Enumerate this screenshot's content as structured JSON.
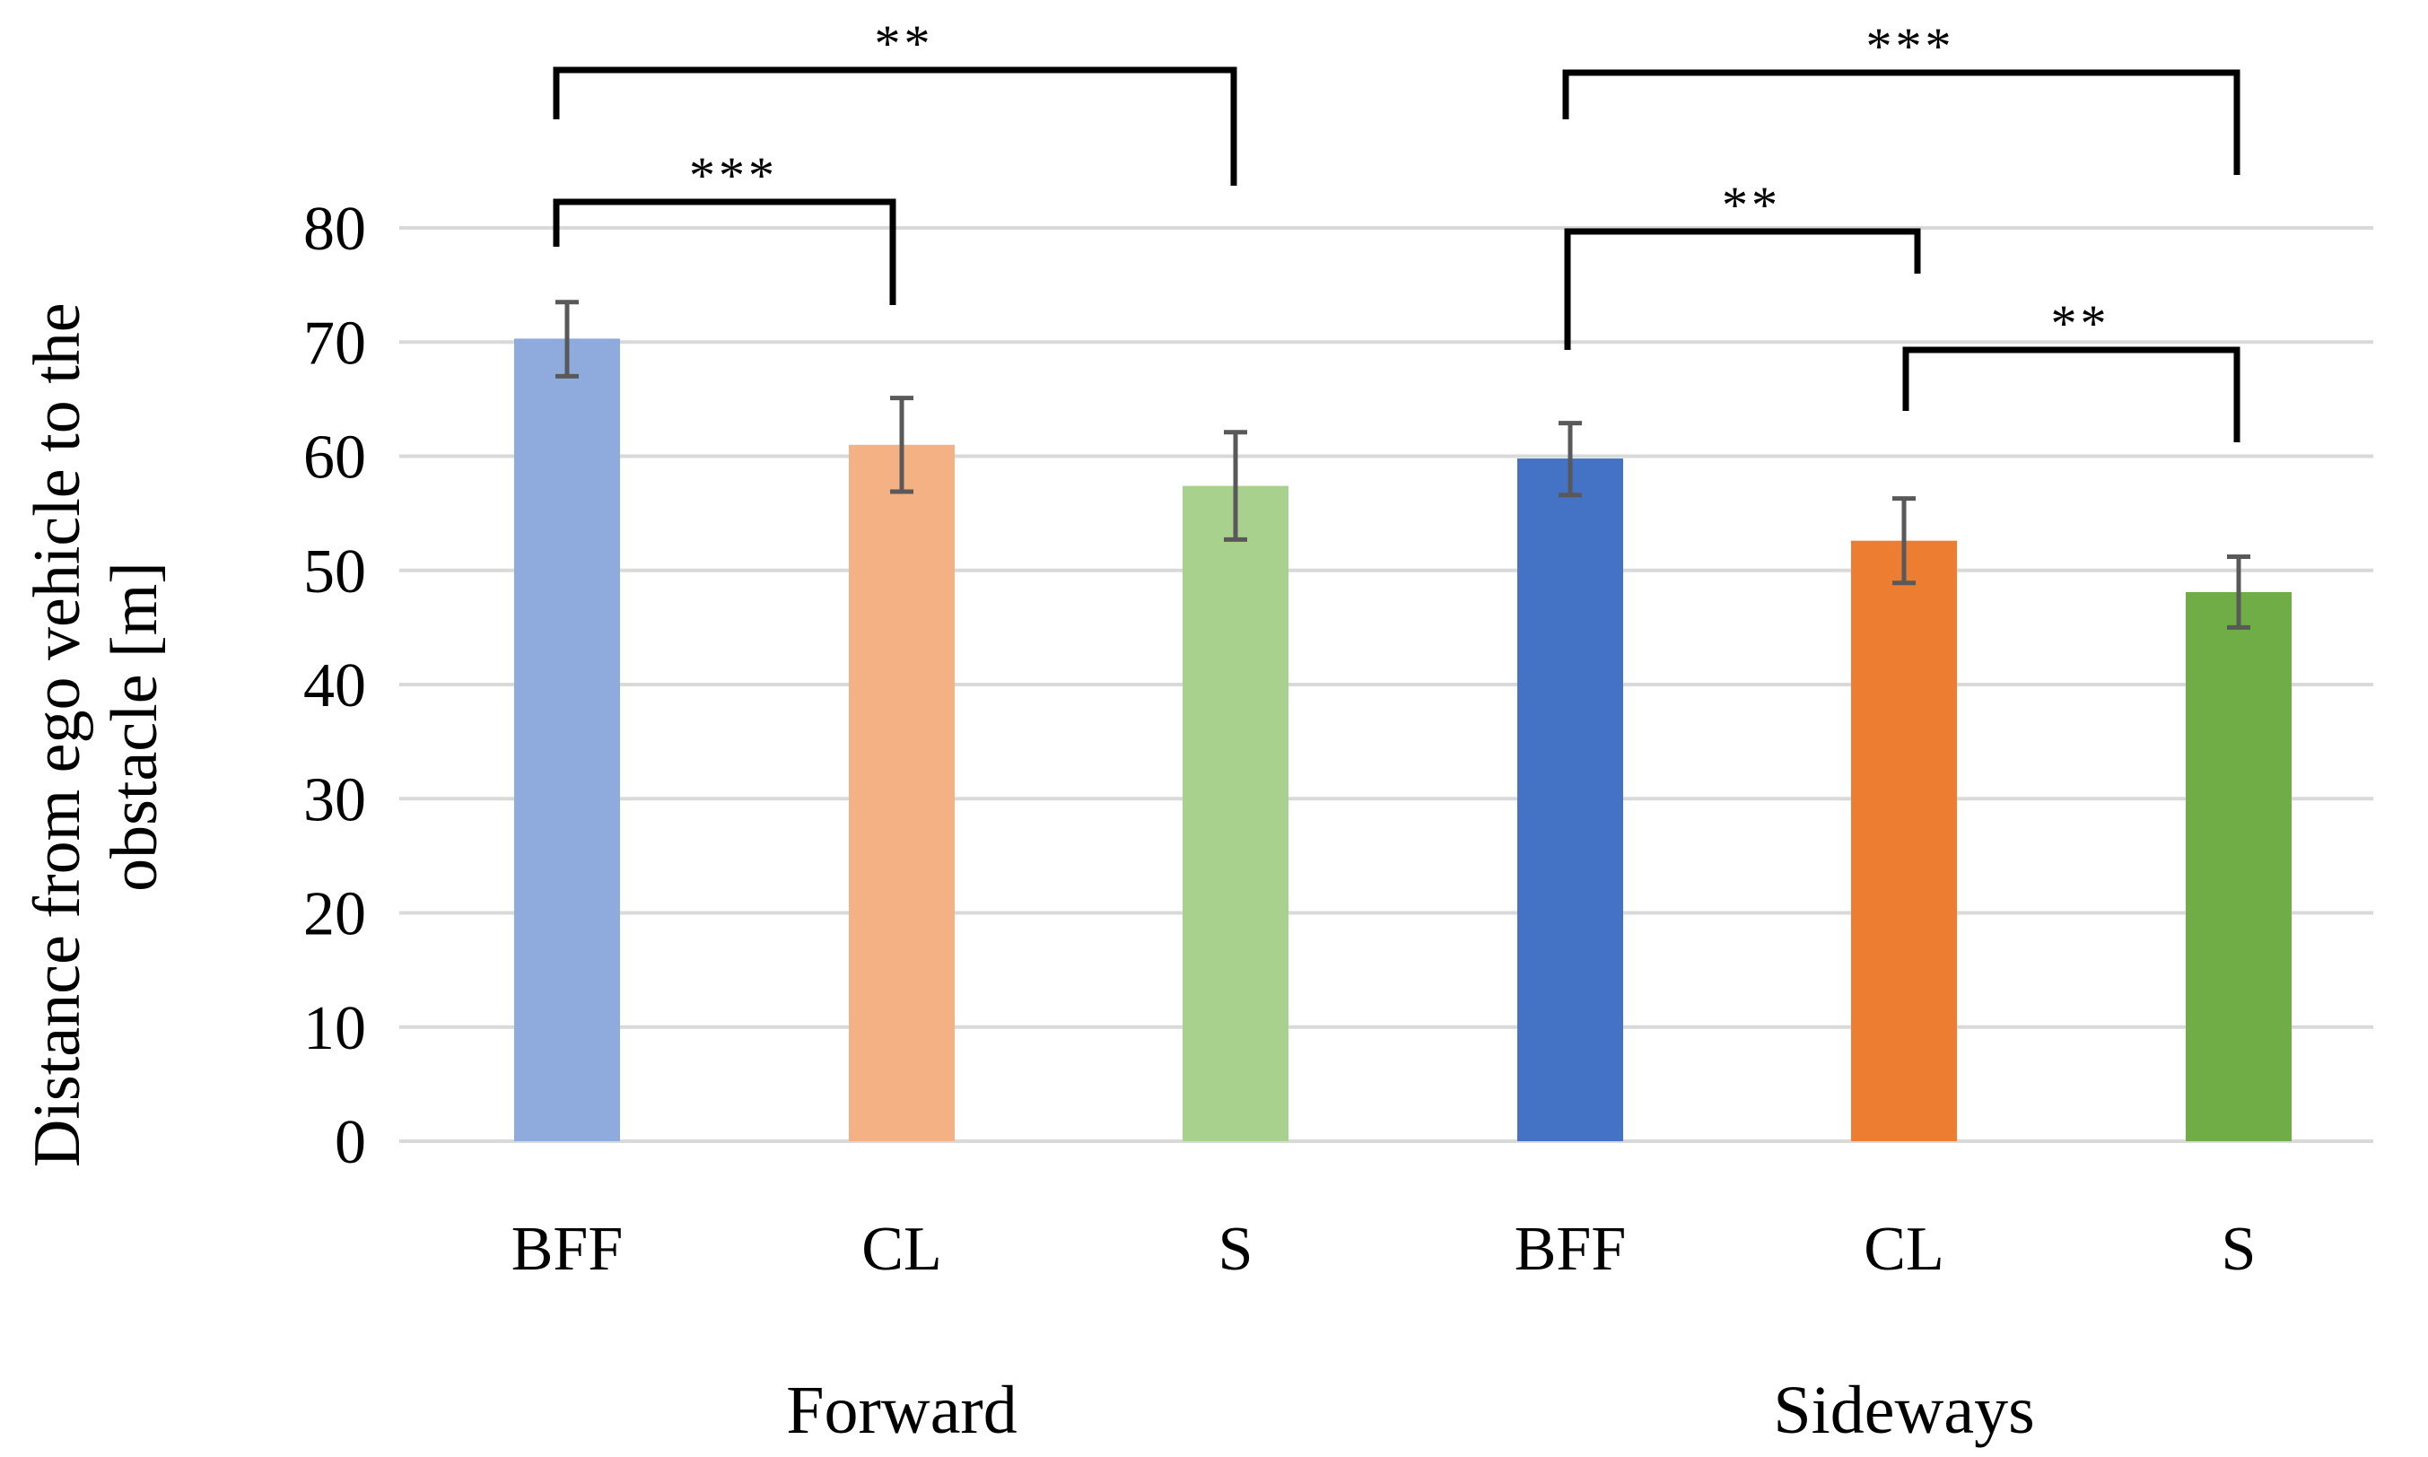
{
  "chart_data": {
    "type": "bar",
    "title": "",
    "xlabel": "",
    "ylabel_lines": [
      "Distance from ego vehicle to the",
      "obstacle [m]"
    ],
    "ylim": [
      0,
      80
    ],
    "yticks": [
      0,
      10,
      20,
      30,
      40,
      50,
      60,
      70,
      80
    ],
    "grid": true,
    "groups": [
      {
        "name": "Forward",
        "bars": [
          {
            "label": "BFF",
            "value": 70.3,
            "err_low": 67.0,
            "err_high": 73.5,
            "color": "#8faadc"
          },
          {
            "label": "CL",
            "value": 61.0,
            "err_low": 56.9,
            "err_high": 65.1,
            "color": "#f4b183"
          },
          {
            "label": "S",
            "value": 57.4,
            "err_low": 52.7,
            "err_high": 62.1,
            "color": "#a9d18e"
          }
        ]
      },
      {
        "name": "Sideways",
        "bars": [
          {
            "label": "BFF",
            "value": 59.8,
            "err_low": 56.6,
            "err_high": 62.9,
            "color": "#4472c4"
          },
          {
            "label": "CL",
            "value": 52.6,
            "err_low": 48.9,
            "err_high": 56.3,
            "color": "#ed7d31"
          },
          {
            "label": "S",
            "value": 48.1,
            "err_low": 45.0,
            "err_high": 51.2,
            "color": "#70ad47"
          }
        ]
      }
    ],
    "significance": [
      {
        "from": 0,
        "to": 1,
        "label": "***"
      },
      {
        "from": 0,
        "to": 2,
        "label": "**"
      },
      {
        "from": 3,
        "to": 5,
        "label": "***"
      },
      {
        "from": 3,
        "to": 4,
        "label": "**"
      },
      {
        "from": 4,
        "to": 5,
        "label": "**"
      }
    ]
  }
}
